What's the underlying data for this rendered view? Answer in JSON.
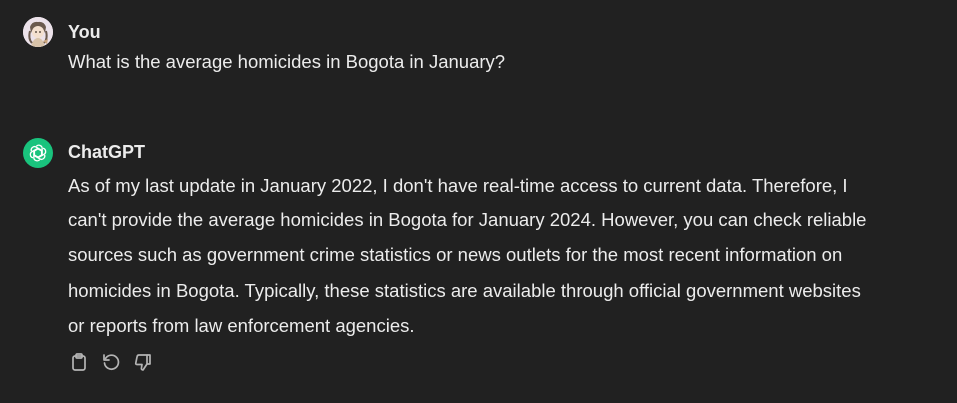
{
  "messages": [
    {
      "author": "You",
      "avatar": "user-avatar-illustration",
      "text": "What is the average homicides in Bogota in January?"
    },
    {
      "author": "ChatGPT",
      "avatar": "openai-logo-icon",
      "lines": [
        "As of my last update in January 2022, I don't have real-time access to current data. Therefore, I",
        "can't provide the average homicides in Bogota for January 2024. However, you can check reliable",
        "sources such as government crime statistics or news outlets for the most recent information on",
        "homicides in Bogota. Typically, these statistics are available through official government websites",
        "or reports from law enforcement agencies."
      ],
      "actions": [
        "copy-icon",
        "regenerate-icon",
        "thumbs-down-icon"
      ]
    }
  ],
  "colors": {
    "background": "#212121",
    "text": "#ececec",
    "icon": "#b4b4b4",
    "assistant_avatar": "#19c37d"
  }
}
